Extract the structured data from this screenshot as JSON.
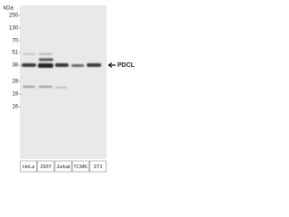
{
  "blot": {
    "unit": "kDa",
    "markers": [
      250,
      130,
      70,
      51,
      38,
      28,
      19,
      16
    ],
    "lanes": [
      "HeLa",
      "293T",
      "Jurkat",
      "TCMK",
      "3T3"
    ],
    "target": "PDCL"
  }
}
